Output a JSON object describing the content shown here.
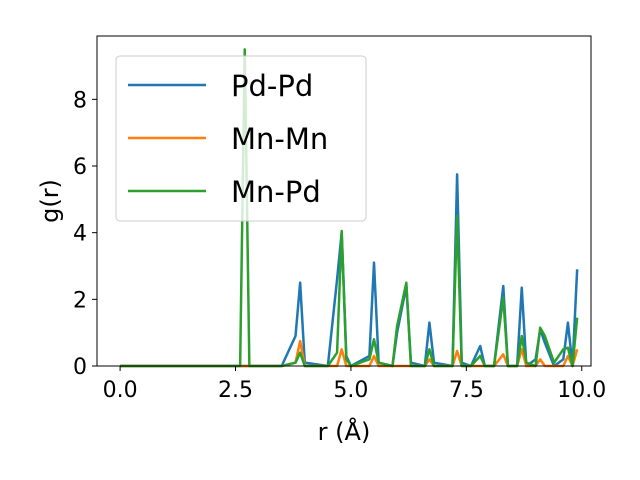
{
  "chart_data": {
    "type": "line",
    "xlabel": "r (Å)",
    "ylabel": "g(r)",
    "xlim": [
      -0.5,
      10.2
    ],
    "ylim": [
      0,
      9.9
    ],
    "xticks": [
      0.0,
      2.5,
      5.0,
      7.5,
      10.0
    ],
    "xtick_labels": [
      "0.0",
      "2.5",
      "5.0",
      "7.5",
      "10.0"
    ],
    "yticks": [
      0,
      2,
      4,
      6,
      8
    ],
    "ytick_labels": [
      "0",
      "2",
      "4",
      "6",
      "8"
    ],
    "grid": false,
    "legend_position": "top-left",
    "x": [
      0.0,
      0.5,
      1.0,
      1.5,
      2.0,
      2.5,
      2.6,
      2.7,
      2.8,
      2.9,
      3.0,
      3.5,
      3.8,
      3.9,
      4.0,
      4.5,
      4.7,
      4.8,
      4.9,
      5.0,
      5.4,
      5.5,
      5.6,
      5.9,
      6.0,
      6.2,
      6.3,
      6.6,
      6.7,
      6.8,
      7.2,
      7.3,
      7.4,
      7.6,
      7.8,
      7.9,
      8.1,
      8.3,
      8.4,
      8.6,
      8.7,
      8.8,
      9.0,
      9.1,
      9.2,
      9.4,
      9.6,
      9.7,
      9.8,
      9.9
    ],
    "series": [
      {
        "name": "Pd-Pd",
        "color": "#1f77b4",
        "values": [
          0,
          0,
          0,
          0,
          0,
          0,
          0,
          0,
          0,
          0,
          0,
          0,
          0.9,
          2.5,
          0.1,
          0,
          2.6,
          4.0,
          0.3,
          0,
          0.3,
          3.1,
          0.1,
          0,
          1.0,
          2.4,
          0.1,
          0,
          1.3,
          0.1,
          0,
          5.75,
          0.1,
          0,
          0.6,
          0,
          0,
          2.4,
          0,
          0,
          2.35,
          0,
          0.2,
          1.1,
          0.7,
          0,
          0.2,
          1.3,
          0,
          2.9
        ]
      },
      {
        "name": "Mn-Mn",
        "color": "#ff7f0e",
        "values": [
          0,
          0,
          0,
          0,
          0,
          0,
          0,
          0,
          0,
          0,
          0,
          0,
          0.1,
          0.75,
          0,
          0,
          0,
          0.5,
          0,
          0,
          0,
          0.3,
          0,
          0,
          0,
          0,
          0,
          0,
          0.2,
          0,
          0,
          0.45,
          0,
          0,
          0,
          0,
          0,
          0.35,
          0,
          0,
          0.5,
          0,
          0,
          0.2,
          0,
          0,
          0,
          0.3,
          0,
          0.5
        ]
      },
      {
        "name": "Mn-Pd",
        "color": "#2ca02c",
        "values": [
          0,
          0,
          0,
          0,
          0,
          0,
          0,
          9.5,
          0,
          0,
          0,
          0,
          0.1,
          0.4,
          0,
          0,
          0.4,
          4.05,
          0.2,
          0,
          0.2,
          0.8,
          0.1,
          0,
          1.2,
          2.5,
          0,
          0,
          0.5,
          0,
          0,
          4.5,
          0,
          0,
          0.3,
          0,
          0,
          2.05,
          0,
          0,
          0.9,
          0.1,
          0,
          1.15,
          0.9,
          0.1,
          0.5,
          0.55,
          0,
          1.45
        ]
      }
    ]
  }
}
